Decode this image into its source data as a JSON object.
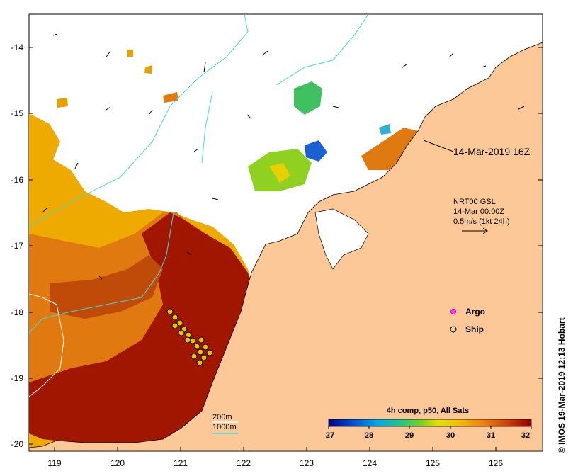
{
  "map": {
    "lat_ticks": [
      "-14",
      "-15",
      "-16",
      "-17",
      "-18",
      "-19",
      "-20"
    ],
    "lon_ticks": [
      "119",
      "120",
      "121",
      "122",
      "123",
      "124",
      "125",
      "126"
    ],
    "timestamp_label": "14-Mar-2019 16Z",
    "current_legend": {
      "line1": "NRT00 GSL",
      "line2": "14-Mar 00:00Z",
      "line3": "0.5m/s (1kt 24h)"
    },
    "markers": {
      "argo_label": "Argo",
      "ship_label": "Ship"
    },
    "contour_legend": {
      "depth_200": "200m",
      "depth_1000": "1000m"
    },
    "colorbar": {
      "title": "4h comp, p50, All Sats",
      "ticks": [
        "27",
        "28",
        "29",
        "30",
        "31",
        "32"
      ]
    },
    "credit": "© IMOS 19-Mar-2019 12:13 Hobart",
    "colors": {
      "land": "#fcc898",
      "sst_hot": "#a01400",
      "sst_warm": "#e07010",
      "sst_mid": "#f0a800",
      "contour_1000": "#40d8d8"
    }
  }
}
